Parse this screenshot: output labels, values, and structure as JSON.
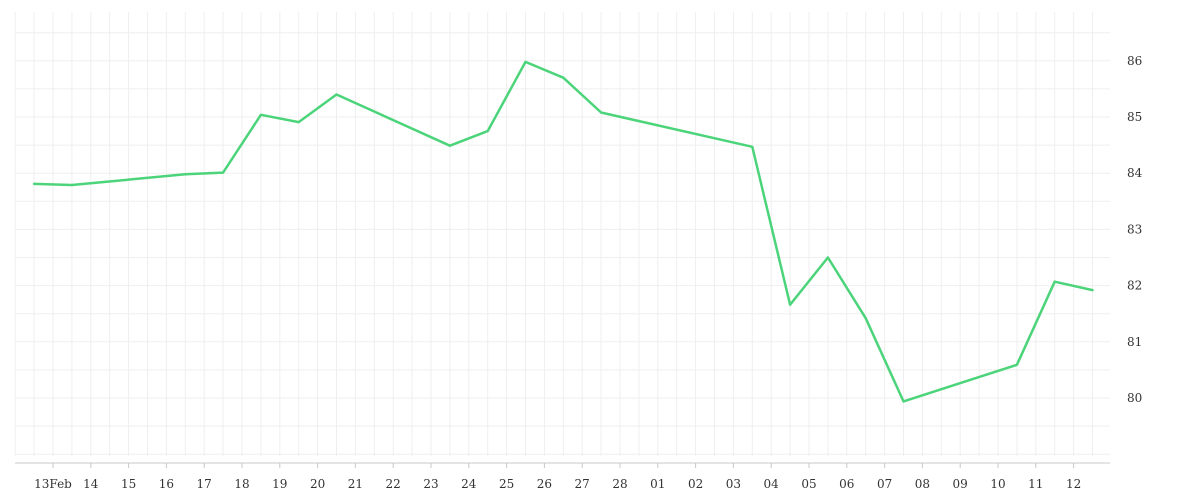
{
  "chart_data": {
    "type": "line",
    "title": "",
    "xlabel": "",
    "ylabel": "",
    "x_tick_labels": [
      "13Feb",
      "14",
      "15",
      "16",
      "17",
      "18",
      "19",
      "20",
      "21",
      "22",
      "23",
      "24",
      "25",
      "26",
      "27",
      "28",
      "01",
      "02",
      "03",
      "04",
      "05",
      "06",
      "07",
      "08",
      "09",
      "10",
      "11",
      "12"
    ],
    "y_ticks": [
      80,
      81,
      82,
      83,
      84,
      85,
      86
    ],
    "ylim": [
      78.9,
      86.9
    ],
    "grid": true,
    "line_color": "#4cd47a",
    "series": [
      {
        "x": [
          "2024-02-12T12:00",
          "2024-02-13T12:00",
          "2024-02-16T12:00",
          "2024-02-17T12:00",
          "2024-02-18T12:00",
          "2024-02-19T12:00",
          "2024-02-20T12:00",
          "2024-02-23T12:00",
          "2024-02-24T12:00",
          "2024-02-25T12:00",
          "2024-02-26T12:00",
          "2024-02-27T12:00",
          "2024-03-02T12:00",
          "2024-03-03T12:00",
          "2024-03-04T12:00",
          "2024-03-05T12:00",
          "2024-03-06T12:00",
          "2024-03-09T12:00",
          "2024-03-10T12:00",
          "2024-03-11T12:00"
        ],
        "y": [
          83.81,
          83.79,
          83.98,
          84.01,
          85.04,
          84.91,
          85.4,
          84.49,
          84.75,
          85.98,
          85.7,
          85.08,
          84.47,
          81.66,
          82.5,
          81.42,
          79.94,
          80.59,
          82.07,
          81.92
        ]
      }
    ]
  }
}
